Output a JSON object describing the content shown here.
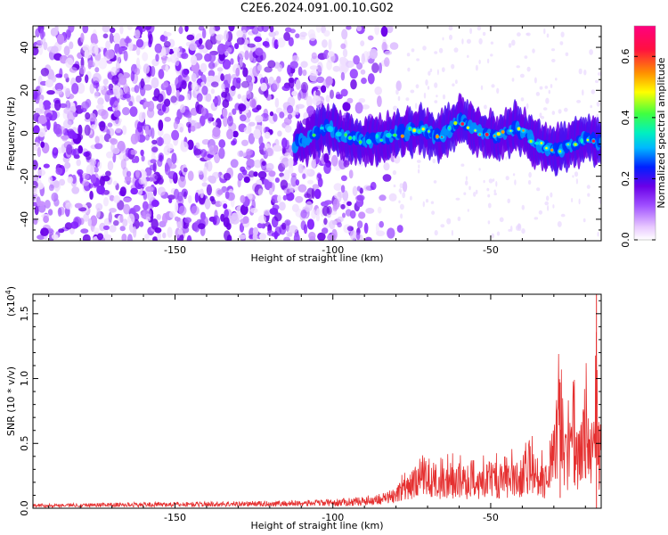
{
  "title": "C2E6.2024.091.00.10.G02",
  "colors": {
    "snr_line": "#e53030",
    "colormap": [
      "#ffffff",
      "#e8c8ff",
      "#a050ff",
      "#6a00e8",
      "#0020ff",
      "#00b8ff",
      "#00f0c0",
      "#40ff40",
      "#ffff00",
      "#ff9000",
      "#ff1040",
      "#ff007f"
    ]
  },
  "chart_data": [
    {
      "type": "heatmap",
      "title": "",
      "xlabel": "Height of straight line (km)",
      "ylabel": "Frequency (Hz)",
      "xlim": [
        -195,
        -15
      ],
      "ylim": [
        -50,
        50
      ],
      "xticks": [
        -150,
        -100,
        -50
      ],
      "yticks": [
        -40,
        -20,
        0,
        20,
        40
      ],
      "grid": false,
      "colorbar": {
        "label": "Normalized spectral amplitude",
        "range": [
          0.0,
          0.7
        ],
        "ticks": [
          0.0,
          0.2,
          0.4,
          0.6
        ]
      },
      "noise_region": {
        "x_range": [
          -195,
          -82
        ],
        "y_range": [
          -50,
          50
        ],
        "level": "weak"
      },
      "signal_ridge": {
        "x": [
          -112,
          -108,
          -102,
          -96,
          -90,
          -84,
          -78,
          -72,
          -66,
          -60,
          -54,
          -48,
          -42,
          -36,
          -30,
          -24,
          -18,
          -16
        ],
        "y": [
          -5,
          -3,
          3,
          -2,
          -3,
          -2,
          0,
          2,
          -2,
          6,
          1,
          -2,
          3,
          -4,
          -8,
          -5,
          -2,
          -4
        ],
        "peak_amplitude_range": [
          0.3,
          0.7
        ]
      }
    },
    {
      "type": "line",
      "title": "",
      "xlabel": "Height of straight line (km)",
      "ylabel": "SNR (10 * v/v)",
      "y_multiplier": "(x10",
      "y_multiplier_exp": "4",
      "xlim": [
        -195,
        -15
      ],
      "ylim": [
        0,
        16500
      ],
      "xticks": [
        -150,
        -100,
        -50
      ],
      "yticks": [
        0.0,
        0.5,
        1.0,
        1.5
      ],
      "grid": false,
      "series": [
        {
          "x": [
            -195,
            -180,
            -160,
            -140,
            -120,
            -100,
            -90,
            -82,
            -78,
            -75,
            -72,
            -69,
            -66,
            -63,
            -60,
            -57,
            -54,
            -51,
            -48,
            -45,
            -42,
            -39,
            -36,
            -33,
            -30,
            -28,
            -26,
            -24,
            -22,
            -20,
            -18,
            -17,
            -16.5,
            -16,
            -15
          ],
          "y": [
            300,
            350,
            400,
            450,
            500,
            600,
            800,
            1200,
            1800,
            2500,
            3300,
            2800,
            2600,
            3000,
            2900,
            2700,
            2800,
            3200,
            2900,
            3000,
            3300,
            3500,
            3800,
            3000,
            5500,
            9700,
            5000,
            7500,
            5000,
            8000,
            6000,
            7500,
            16500,
            5000,
            5500
          ]
        }
      ]
    }
  ]
}
